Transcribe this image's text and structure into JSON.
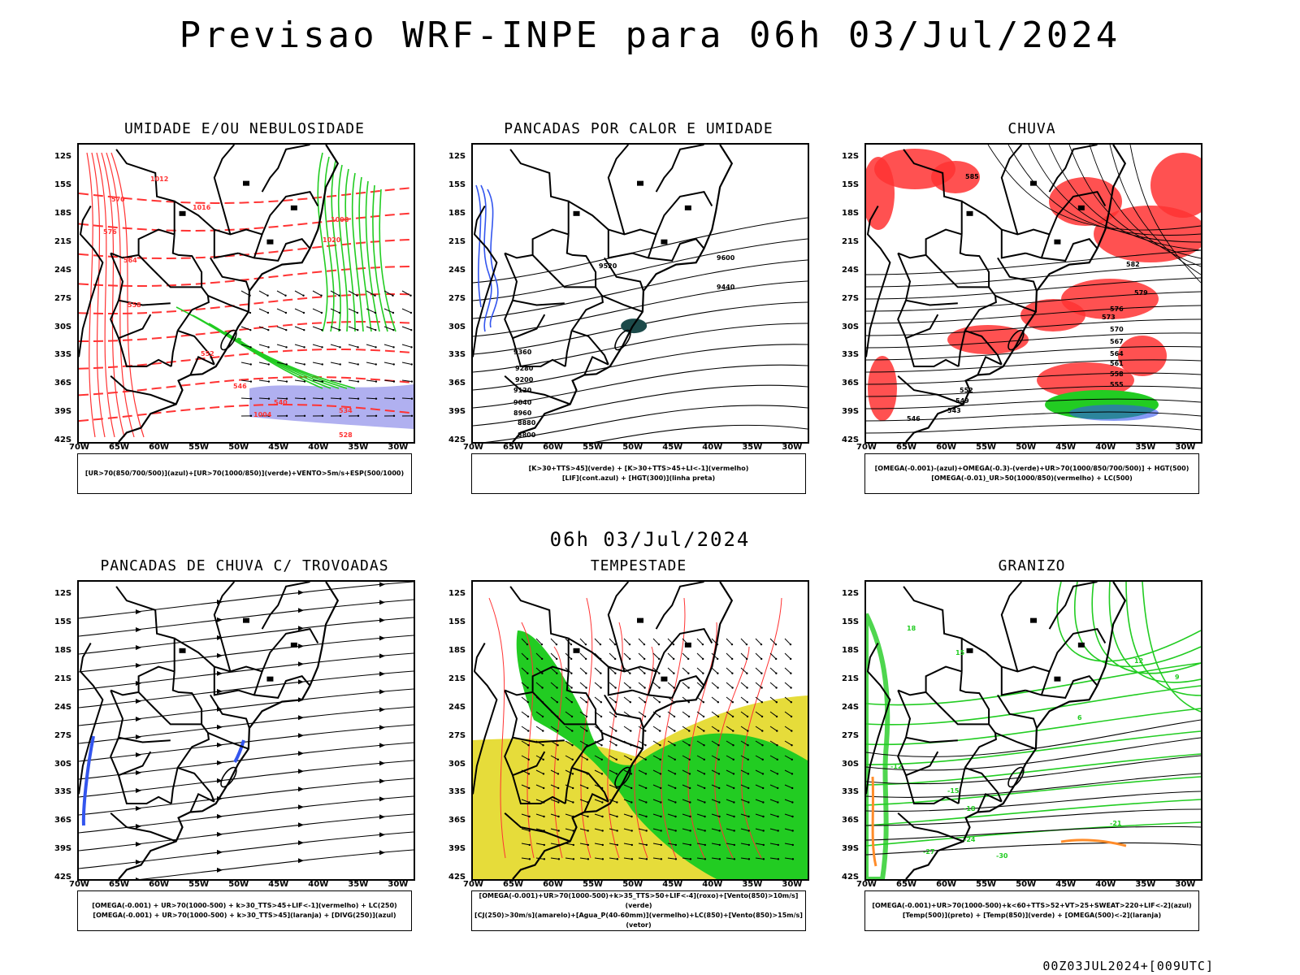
{
  "header": {
    "title": "Previsao WRF-INPE  para 06h 03/Jul/2024"
  },
  "middle": {
    "subtitle": "06h 03/Jul/2024"
  },
  "footer": {
    "stamp": "00Z03JUL2024+[009UTC]"
  },
  "axes": {
    "lat_labels": [
      "12S",
      "15S",
      "18S",
      "21S",
      "24S",
      "27S",
      "30S",
      "33S",
      "36S",
      "39S",
      "42S"
    ],
    "lon_labels": [
      "70W",
      "65W",
      "60W",
      "55W",
      "50W",
      "45W",
      "40W",
      "35W",
      "30W"
    ]
  },
  "colors": {
    "red": "#ff3333",
    "green": "#22cc22",
    "blue": "#3355ee",
    "lavender": "#b0b0f0",
    "yellow": "#e6dc3a",
    "dark_teal": "#1c4a4a",
    "orange": "#ff8c2a",
    "black": "#000000"
  },
  "panels": [
    {
      "title": "UMIDADE E/OU NEBULOSIDADE",
      "caption_lines": [
        "[UR>70(850/700/500)](azul)+[UR>70(1000/850)](verde)+VENTO>5m/s+ESP(500/1000)"
      ],
      "contour_labels": [
        "1012",
        "1016",
        "1020",
        "1008",
        "1004",
        "576",
        "570",
        "564",
        "558",
        "552",
        "546",
        "540",
        "534",
        "528"
      ]
    },
    {
      "title": "PANCADAS POR CALOR E UMIDADE",
      "caption_lines": [
        "[K>30+TTS>45](verde) + [K>30+TTS>45+LI<-1](vermelho)",
        "[LIF](cont.azul) + [HGT(300)](linha preta)"
      ],
      "contour_labels": [
        "9600",
        "9520",
        "9440",
        "9360",
        "9280",
        "9200",
        "9120",
        "9040",
        "8960",
        "8880",
        "8800"
      ]
    },
    {
      "title": "CHUVA",
      "caption_lines": [
        "[OMEGA(-0.001)-(azul)+OMEGA(-0.3)-(verde)+UR>70(1000/850/700/500)] + HGT(500)",
        "[OMEGA(-0.01)_UR>50(1000/850)(vermelho) + LC(500)"
      ],
      "contour_labels": [
        "585",
        "582",
        "579",
        "576",
        "573",
        "570",
        "567",
        "564",
        "561",
        "558",
        "555",
        "552",
        "549",
        "546",
        "543"
      ]
    },
    {
      "title": "PANCADAS DE CHUVA C/ TROVOADAS",
      "caption_lines": [
        "[OMEGA(-0.001) + UR>70(1000-500) + k>30_TTS>45+LIF<-1](vermelho) + LC(250)",
        "[OMEGA(-0.001) + UR>70(1000-500) + k>30_TTS>45](laranja) + [DIVG(250)](azul)"
      ],
      "contour_labels": []
    },
    {
      "title": "TEMPESTADE",
      "caption_lines": [
        "[OMEGA(-0.001)+UR>70(1000-500)+k>35_TTS>50+LIF<-4](roxo)+[Vento(850)>10m/s](verde)",
        "[CJ(250)>30m/s](amarelo)+[Agua_P(40-60mm)](vermelho)+LC(850)+[Vento(850)>15m/s](vetor)"
      ],
      "contour_labels": []
    },
    {
      "title": "GRANIZO",
      "caption_lines": [
        "[OMEGA(-0.001)+UR>70(1000-500)+k<60+TTS>52+VT>25+SWEAT>220+LIF<-2](azul)",
        "[Temp(500)](preto) + [Temp(850)](verde) + [OMEGA(500)<-2](laranja)"
      ],
      "contour_labels": [
        "18",
        "15",
        "12",
        "9",
        "6",
        "-12",
        "-15",
        "-18",
        "-21",
        "-24",
        "-27",
        "-30"
      ]
    }
  ]
}
